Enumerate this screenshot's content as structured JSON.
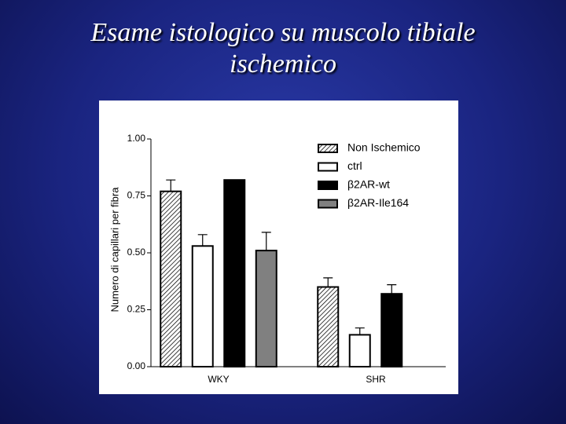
{
  "chart_data": {
    "type": "bar",
    "title": "Esame istologico su muscolo tibiale ischemico",
    "y_label": "Numero di capillari per fibra",
    "categories": [
      "WKY",
      "SHR"
    ],
    "series": [
      {
        "name": "Non Ischemico",
        "color": "#ffffff",
        "hatch": true,
        "values": [
          0.77,
          0.35
        ],
        "errors": [
          0.05,
          0.04
        ]
      },
      {
        "name": "ctrl",
        "color": "#ffffff",
        "values": [
          0.53,
          0.14
        ],
        "errors": [
          0.05,
          0.03
        ]
      },
      {
        "name": "β2AR-wt",
        "color": "#000000",
        "values": [
          0.82,
          0.32
        ],
        "errors": [
          null,
          0.04
        ]
      },
      {
        "name": "β2AR-Ile164",
        "color": "#808080",
        "values": [
          0.51,
          null
        ],
        "errors": [
          0.08,
          null
        ]
      }
    ],
    "ylim": [
      0,
      1
    ],
    "yticks": [
      {
        "value": 0,
        "label": "0.00"
      },
      {
        "value": 0.25,
        "label": "0.25"
      },
      {
        "value": 0.5,
        "label": "0.50"
      },
      {
        "value": 0.75,
        "label": "0.75"
      },
      {
        "value": 1,
        "label": "1.00"
      }
    ],
    "legend": "top-right"
  }
}
